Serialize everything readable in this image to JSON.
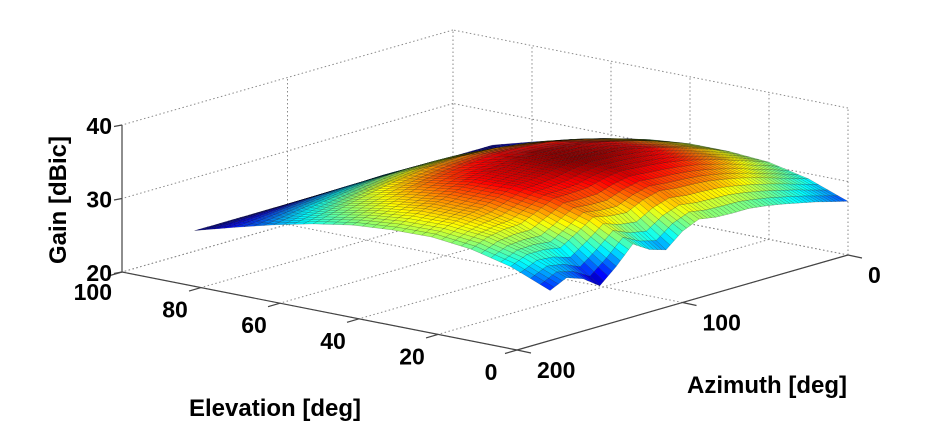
{
  "chart_data": {
    "type": "surface",
    "colormap": "jet",
    "xlabel": "Azimuth [deg]",
    "ylabel": "Elevation [deg]",
    "zlabel": "Gain [dBic]",
    "xlim": [
      0,
      200
    ],
    "ylim": [
      0,
      100
    ],
    "zlim": [
      20,
      40
    ],
    "x_ticks": [
      "0",
      "100",
      "200"
    ],
    "x_tick_values": [
      0,
      100,
      200
    ],
    "y_ticks": [
      "0",
      "20",
      "40",
      "60",
      "80",
      "100"
    ],
    "y_tick_values": [
      0,
      20,
      40,
      60,
      80,
      100
    ],
    "z_ticks": [
      "20",
      "30",
      "40"
    ],
    "z_tick_values": [
      20,
      30,
      40
    ],
    "grid": true,
    "azimuth": [
      0,
      10,
      20,
      30,
      40,
      50,
      60,
      70,
      80,
      90,
      100,
      110,
      120,
      130,
      140,
      150,
      160,
      170,
      180
    ],
    "elevation": [
      0,
      10,
      20,
      30,
      40,
      50,
      60,
      70,
      80,
      90
    ],
    "gain": [
      [
        27.3,
        27.9,
        28.5,
        29.0,
        29.5,
        29.9,
        30.2,
        30.2,
        30.3,
        30.7,
        29.7,
        27.8,
        28.5,
        29.9,
        27.5,
        25.5,
        27.1,
        27.9,
        26.8
      ],
      [
        29.3,
        30.0,
        30.7,
        31.4,
        32.0,
        32.5,
        32.9,
        33.1,
        33.2,
        33.5,
        32.9,
        31.8,
        32.0,
        32.5,
        31.0,
        29.6,
        30.0,
        30.0,
        29.0
      ],
      [
        30.5,
        31.3,
        32.0,
        32.8,
        33.4,
        34.0,
        34.4,
        34.7,
        34.9,
        35.1,
        34.7,
        34.1,
        34.0,
        34.0,
        32.9,
        31.8,
        31.7,
        31.3,
        30.3
      ],
      [
        30.9,
        31.8,
        32.6,
        33.3,
        34.0,
        34.6,
        35.1,
        35.4,
        35.6,
        35.7,
        35.5,
        35.1,
        34.8,
        34.6,
        33.7,
        32.9,
        32.4,
        31.8,
        30.9
      ],
      [
        30.9,
        31.7,
        32.5,
        33.2,
        33.8,
        34.4,
        34.9,
        35.2,
        35.4,
        35.5,
        35.4,
        35.0,
        34.8,
        34.4,
        33.7,
        33.0,
        32.4,
        31.7,
        30.8
      ],
      [
        30.4,
        31.1,
        31.8,
        32.4,
        33.0,
        33.5,
        34.0,
        34.2,
        34.4,
        34.5,
        34.4,
        34.2,
        33.9,
        33.5,
        33.0,
        32.3,
        31.7,
        31.1,
        30.4
      ],
      [
        29.5,
        30.1,
        30.7,
        31.2,
        31.7,
        32.1,
        32.4,
        32.7,
        32.8,
        32.9,
        32.8,
        32.7,
        32.4,
        32.1,
        31.7,
        31.2,
        30.7,
        30.1,
        29.5
      ],
      [
        28.3,
        28.7,
        29.1,
        29.5,
        29.8,
        30.1,
        30.4,
        30.6,
        30.7,
        30.7,
        30.7,
        30.6,
        30.4,
        30.1,
        29.8,
        29.5,
        29.1,
        28.7,
        28.3
      ],
      [
        26.9,
        27.1,
        27.3,
        27.5,
        27.7,
        27.9,
        28.0,
        28.1,
        28.1,
        28.2,
        28.1,
        28.1,
        28.0,
        27.9,
        27.7,
        27.5,
        27.3,
        27.1,
        26.9
      ],
      [
        25.4,
        25.4,
        25.4,
        25.4,
        25.4,
        25.4,
        25.4,
        25.4,
        25.4,
        25.4,
        25.4,
        25.4,
        25.4,
        25.4,
        25.4,
        25.4,
        25.4,
        25.4,
        25.4
      ]
    ]
  }
}
